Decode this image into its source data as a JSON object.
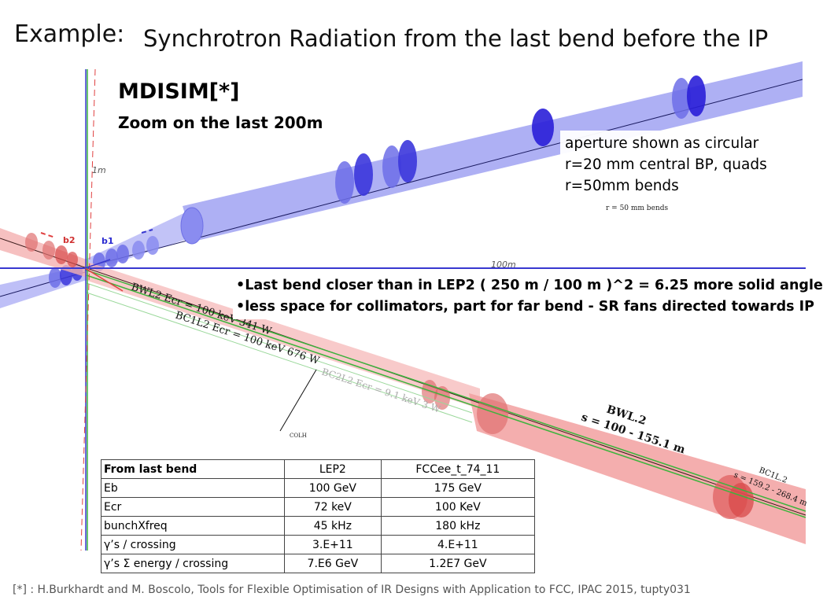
{
  "header": {
    "label": "Example:",
    "title": "Synchrotron Radiation from the last bend before the IP"
  },
  "tool": {
    "name": "MDISIM[*]",
    "subtitle": "Zoom on the last 200m"
  },
  "aperture_note": [
    "aperture shown as circular",
    "r=20 mm central BP, quads",
    "r=50mm bends"
  ],
  "figure_labels": {
    "r_bends": "r = 50 mm bends",
    "axis_1m": "1m",
    "axis_100m": "100m",
    "beam_b1": "b1",
    "beam_b2": "b2",
    "fan_bwl2": "BWL2  Ecr = 100 keV  341 W",
    "fan_bc1l2": "BC1L2  Ecr = 100 keV  676 W",
    "fan_bc2l2": "BC2L2  Ecr = 9.1 keV  3 W",
    "coll": "COLH",
    "bwl2_name": "BWL.2",
    "bwl2_range": "s = 100 - 155.1 m",
    "bc1l2_name": "BC1L.2",
    "bc1l2_range": "s = 159.2 - 268.4 m"
  },
  "bullets": [
    "Last bend closer than in LEP2 ( 250 m / 100 m )^2 = 6.25 more solid angle",
    "less space for collimators, part for far bend - SR fans directed towards IP"
  ],
  "table": {
    "header": [
      "From last bend",
      "LEP2",
      "FCCee_t_74_11"
    ],
    "rows": [
      [
        "Eb",
        "100 GeV",
        "175 GeV"
      ],
      [
        "Ecr",
        "72 keV",
        "100 KeV"
      ],
      [
        "bunchXfreq",
        "45 kHz",
        "180 kHz"
      ],
      [
        "γ’s / crossing",
        "3.E+11",
        "4.E+11"
      ],
      [
        "γ’s Σ energy / crossing",
        "7.E6 GeV",
        "1.2E7 GeV"
      ]
    ]
  },
  "footnote": "[*] : H.Burkhardt and M. Boscolo, Tools for Flexible Optimisation of IR Designs with Application to FCC, IPAC 2015, tupty031",
  "colors": {
    "blue_pipe": "#9a9cf0",
    "blue_element": "#2a1fd8",
    "red_pipe": "#f2a0a0",
    "red_element": "#d84a4a",
    "fan_green": "#3cb43c",
    "axis_vertical": "#3838d0"
  }
}
